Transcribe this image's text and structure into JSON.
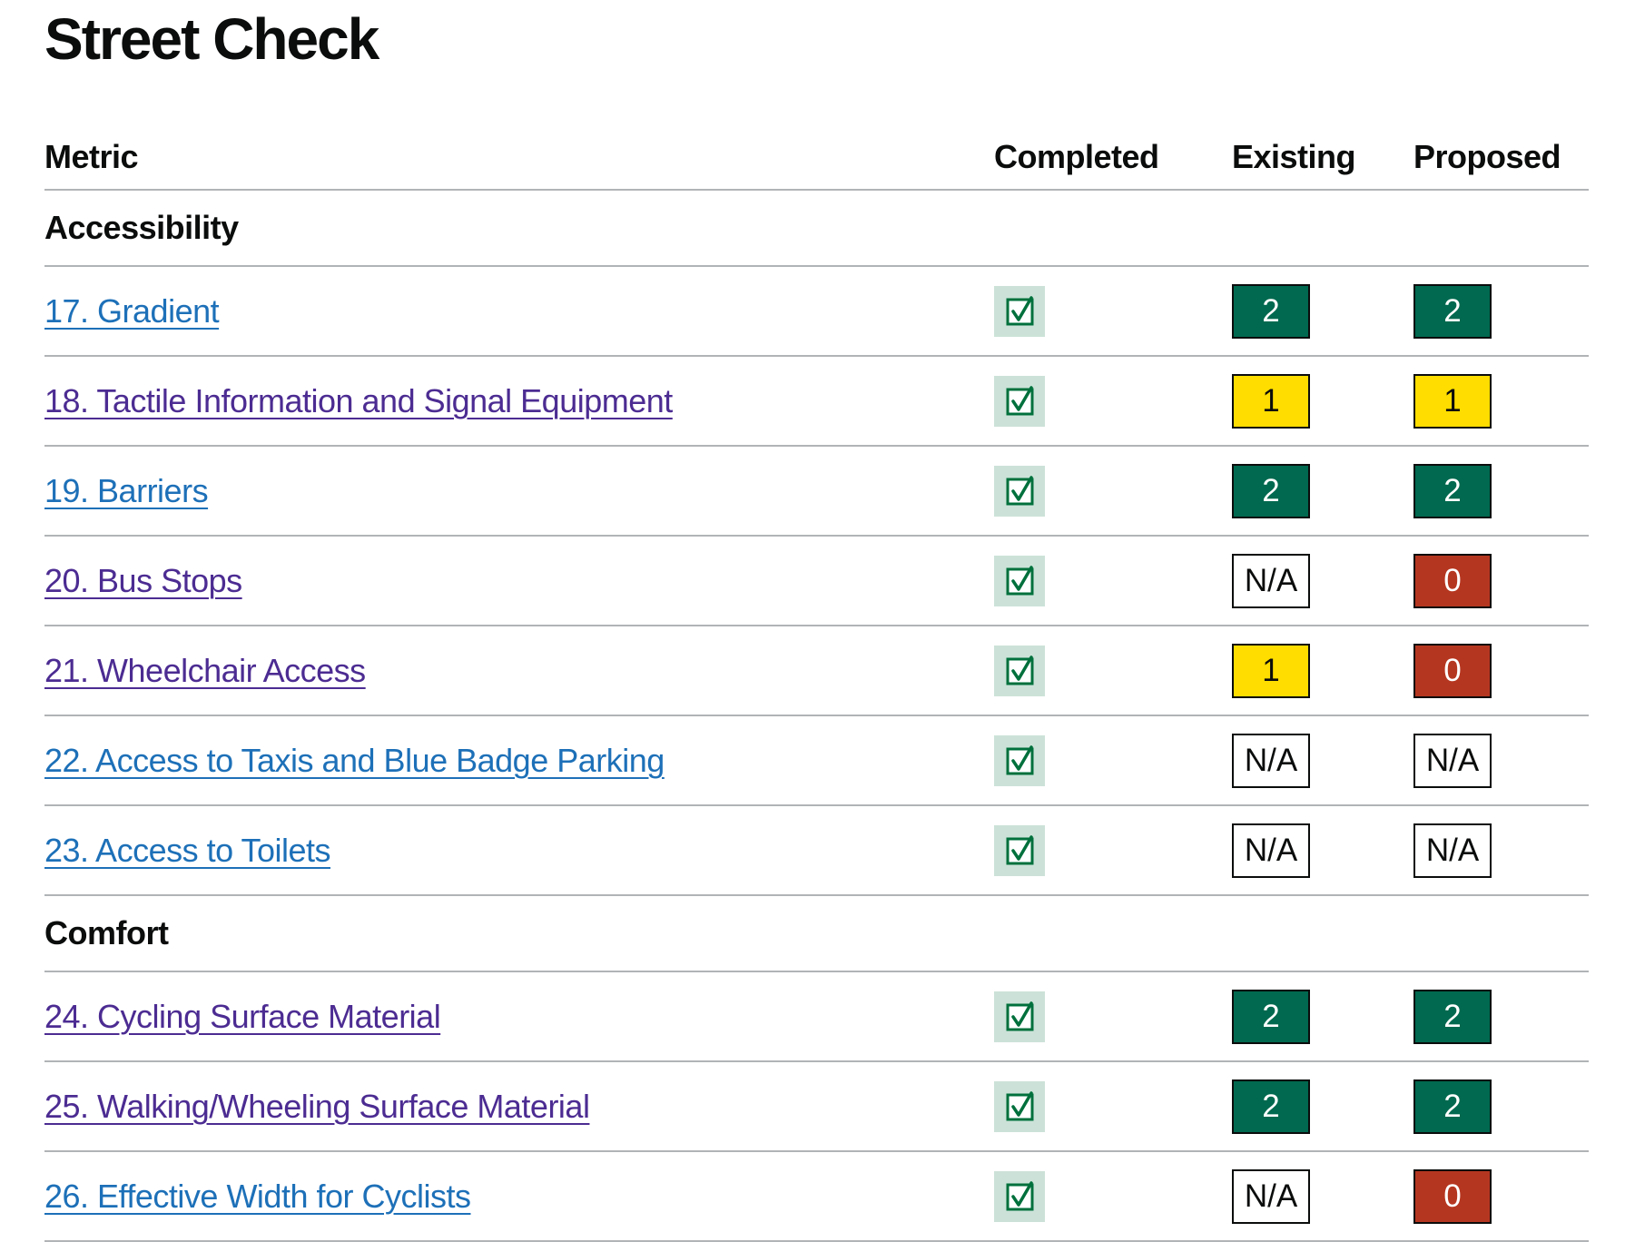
{
  "page": {
    "title": "Street Check"
  },
  "table": {
    "columns": [
      "Metric",
      "Completed",
      "Existing",
      "Proposed"
    ],
    "sections": [
      {
        "heading": "Accessibility",
        "rows": [
          {
            "label": "17. Gradient",
            "visited": false,
            "completed": true,
            "existing": {
              "label": "2",
              "style": "green"
            },
            "proposed": {
              "label": "2",
              "style": "green"
            }
          },
          {
            "label": "18. Tactile Information and Signal Equipment",
            "visited": true,
            "completed": true,
            "existing": {
              "label": "1",
              "style": "yellow"
            },
            "proposed": {
              "label": "1",
              "style": "yellow"
            }
          },
          {
            "label": "19. Barriers",
            "visited": false,
            "completed": true,
            "existing": {
              "label": "2",
              "style": "green"
            },
            "proposed": {
              "label": "2",
              "style": "green"
            }
          },
          {
            "label": "20. Bus Stops",
            "visited": true,
            "completed": true,
            "existing": {
              "label": "N/A",
              "style": "na"
            },
            "proposed": {
              "label": "0",
              "style": "red"
            }
          },
          {
            "label": "21. Wheelchair Access",
            "visited": true,
            "completed": true,
            "existing": {
              "label": "1",
              "style": "yellow"
            },
            "proposed": {
              "label": "0",
              "style": "red"
            }
          },
          {
            "label": "22. Access to Taxis and Blue Badge Parking",
            "visited": false,
            "completed": true,
            "existing": {
              "label": "N/A",
              "style": "na"
            },
            "proposed": {
              "label": "N/A",
              "style": "na"
            }
          },
          {
            "label": "23. Access to Toilets",
            "visited": false,
            "completed": true,
            "existing": {
              "label": "N/A",
              "style": "na"
            },
            "proposed": {
              "label": "N/A",
              "style": "na"
            }
          }
        ]
      },
      {
        "heading": "Comfort",
        "rows": [
          {
            "label": "24. Cycling Surface Material",
            "visited": true,
            "completed": true,
            "existing": {
              "label": "2",
              "style": "green"
            },
            "proposed": {
              "label": "2",
              "style": "green"
            }
          },
          {
            "label": "25. Walking/Wheeling Surface Material",
            "visited": true,
            "completed": true,
            "existing": {
              "label": "2",
              "style": "green"
            },
            "proposed": {
              "label": "2",
              "style": "green"
            }
          },
          {
            "label": "26. Effective Width for Cyclists",
            "visited": false,
            "completed": true,
            "existing": {
              "label": "N/A",
              "style": "na"
            },
            "proposed": {
              "label": "0",
              "style": "red"
            }
          }
        ]
      }
    ]
  },
  "colors": {
    "text": "#0b0c0c",
    "divider": "#b1b4b6",
    "link": "#1d70b8",
    "link_visited": "#4c2c92",
    "checkbox_tile_bg": "#cce2d8",
    "checkbox_mark": "#00703c",
    "score_styles": {
      "green": {
        "bg": "#00694f",
        "fg": "#ffffff"
      },
      "yellow": {
        "bg": "#ffdd00",
        "fg": "#0b0c0c"
      },
      "red": {
        "bg": "#b53620",
        "fg": "#ffffff"
      },
      "na": {
        "bg": "#ffffff",
        "fg": "#0b0c0c"
      }
    }
  }
}
